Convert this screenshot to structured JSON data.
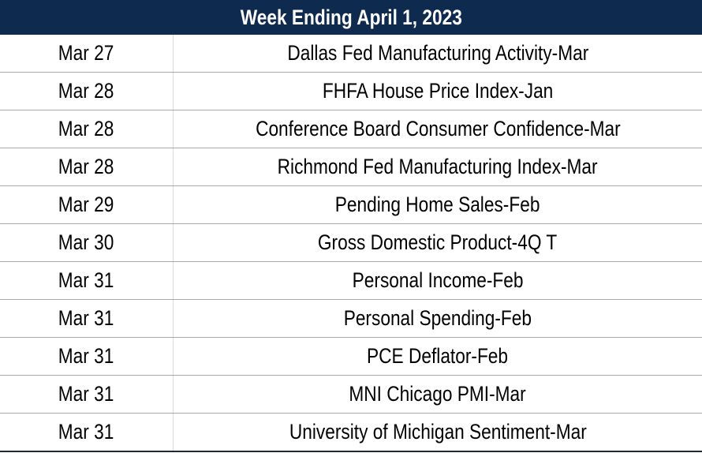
{
  "header": {
    "title": "Week Ending April 1, 2023"
  },
  "table": {
    "rows": [
      [
        "Mar 27",
        "Dallas Fed Manufacturing Activity-Mar"
      ],
      [
        "Mar 28",
        "FHFA House Price Index-Jan"
      ],
      [
        "Mar 28",
        "Conference Board Consumer Confidence-Mar"
      ],
      [
        "Mar 28",
        "Richmond Fed Manufacturing Index-Mar"
      ],
      [
        "Mar 29",
        "Pending Home Sales-Feb"
      ],
      [
        "Mar 30",
        "Gross Domestic Product-4Q T"
      ],
      [
        "Mar 31",
        "Personal Income-Feb"
      ],
      [
        "Mar 31",
        "Personal Spending-Feb"
      ],
      [
        "Mar 31",
        "PCE Deflator-Feb"
      ],
      [
        "Mar 31",
        "MNI Chicago PMI-Mar"
      ],
      [
        "Mar 31",
        "University of Michigan Sentiment-Mar"
      ]
    ]
  }
}
